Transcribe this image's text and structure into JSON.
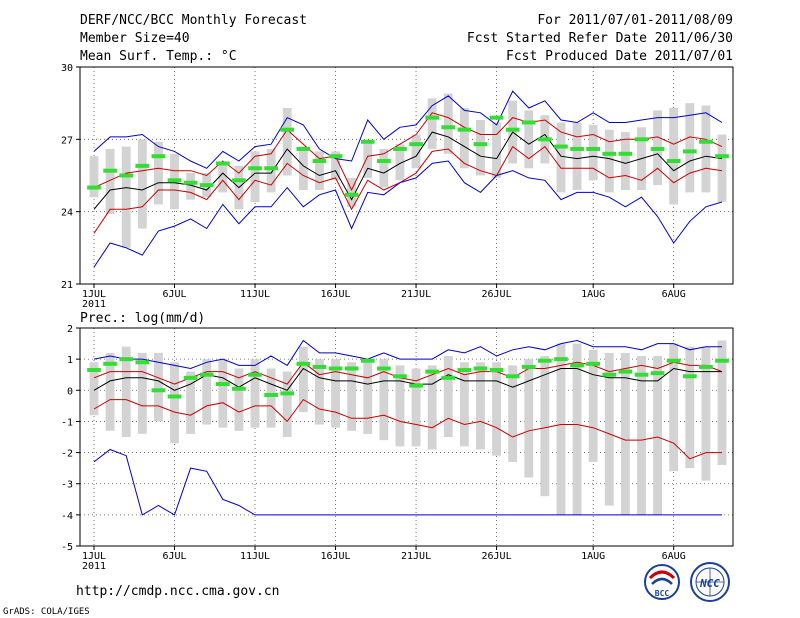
{
  "header": {
    "title": "DERF/NCC/BCC Monthly Forecast",
    "member_size": "Member Size=40",
    "variable": "Mean Surf. Temp.: °C",
    "period": "For 2011/07/01-2011/08/09",
    "fcst_started": "Fcst Started Refer Date 2011/06/30",
    "fcst_produced": "Fcst Produced Date 2011/07/01"
  },
  "footer": {
    "url": "http://cmdp.ncc.cma.gov.cn",
    "credit": "GrADS: COLA/IGES",
    "logo_bcc_text": "BCC",
    "logo_ncc_text": "NCC"
  },
  "colors": {
    "max_min": "#0000cc",
    "spread": "#cc0000",
    "mean": "#000000",
    "box": "#d3d3d3",
    "marker": "#33dd33",
    "grid": "#555555"
  },
  "chart_data": [
    {
      "type": "line",
      "title": "Mean Surf. Temp.: °C",
      "x_tick_labels": [
        "1JUL",
        "6JUL",
        "11JUL",
        "16JUL",
        "21JUL",
        "26JUL",
        "1AUG",
        "6AUG"
      ],
      "x_tick_days": [
        1,
        6,
        11,
        16,
        21,
        26,
        32,
        37
      ],
      "x_year_label": "2011",
      "days": 40,
      "ylim": [
        21,
        30
      ],
      "y_ticks": [
        21,
        24,
        27,
        30
      ],
      "series": [
        {
          "name": "max",
          "color": "#0000cc",
          "values": [
            26.5,
            27.1,
            27.1,
            27.2,
            26.7,
            26.5,
            26.1,
            25.8,
            26.5,
            26.1,
            26.7,
            26.8,
            27.9,
            27.6,
            26.6,
            26.2,
            26.1,
            27.8,
            27.0,
            27.5,
            27.6,
            28.4,
            28.8,
            28.2,
            28.1,
            27.6,
            29.0,
            28.3,
            28.6,
            27.8,
            27.7,
            28.1,
            27.7,
            27.7,
            27.8,
            27.9,
            27.9,
            28.0,
            28.1,
            27.7
          ]
        },
        {
          "name": "upper",
          "color": "#cc0000",
          "values": [
            25.0,
            25.3,
            25.6,
            25.7,
            25.8,
            25.7,
            25.7,
            25.5,
            26.1,
            25.6,
            26.3,
            26.4,
            27.4,
            26.8,
            26.2,
            26.3,
            24.9,
            26.3,
            26.4,
            26.8,
            27.2,
            28.1,
            27.9,
            27.5,
            27.2,
            27.2,
            27.9,
            27.7,
            27.8,
            27.3,
            27.1,
            27.2,
            26.9,
            27.0,
            27.0,
            27.1,
            26.8,
            27.1,
            27.0,
            26.7
          ]
        },
        {
          "name": "mean",
          "color": "#000000",
          "values": [
            24.1,
            24.9,
            25.0,
            24.9,
            25.2,
            25.2,
            25.1,
            24.9,
            25.6,
            25.0,
            25.6,
            25.6,
            26.6,
            25.9,
            25.5,
            25.7,
            24.5,
            25.8,
            25.6,
            26.0,
            26.3,
            27.3,
            27.1,
            26.7,
            26.3,
            26.2,
            27.3,
            26.8,
            27.2,
            26.3,
            26.2,
            26.3,
            26.2,
            26.0,
            26.2,
            26.4,
            25.7,
            26.1,
            26.3,
            26.2
          ]
        },
        {
          "name": "lower",
          "color": "#cc0000",
          "values": [
            23.1,
            24.1,
            24.1,
            24.2,
            24.9,
            24.9,
            24.8,
            24.5,
            25.3,
            24.5,
            25.3,
            25.1,
            26.0,
            25.5,
            25.2,
            25.4,
            24.1,
            25.3,
            24.9,
            25.2,
            25.6,
            26.5,
            26.6,
            26.0,
            25.7,
            25.5,
            26.7,
            26.2,
            26.7,
            25.8,
            25.8,
            25.8,
            25.4,
            25.5,
            25.3,
            25.8,
            25.2,
            25.6,
            25.8,
            25.7
          ]
        },
        {
          "name": "min",
          "color": "#0000cc",
          "values": [
            21.7,
            22.7,
            22.5,
            22.2,
            23.2,
            23.4,
            23.7,
            23.3,
            24.3,
            23.5,
            24.2,
            24.2,
            25.0,
            24.2,
            24.7,
            24.9,
            23.3,
            24.8,
            24.7,
            25.2,
            25.4,
            26.0,
            26.1,
            25.2,
            24.8,
            25.5,
            25.7,
            25.4,
            25.3,
            24.5,
            24.8,
            24.8,
            24.6,
            24.2,
            24.6,
            23.8,
            22.7,
            23.6,
            24.2,
            24.4
          ]
        }
      ],
      "boxes": {
        "top": [
          26.3,
          26.6,
          26.7,
          27.0,
          26.9,
          26.4,
          25.6,
          25.6,
          26.0,
          25.9,
          26.5,
          26.6,
          28.3,
          26.7,
          26.5,
          26.5,
          25.4,
          26.9,
          26.6,
          26.8,
          27.2,
          28.7,
          28.9,
          28.3,
          27.8,
          27.7,
          28.6,
          28.2,
          28.0,
          27.7,
          27.7,
          27.6,
          27.4,
          27.3,
          27.5,
          28.2,
          28.3,
          28.5,
          28.4,
          27.2
        ],
        "bottom": [
          24.6,
          23.9,
          22.5,
          23.3,
          24.3,
          24.1,
          24.5,
          24.6,
          24.8,
          24.1,
          24.4,
          24.8,
          25.5,
          24.9,
          24.9,
          25.3,
          24.2,
          25.4,
          25.0,
          25.3,
          25.8,
          26.6,
          26.4,
          25.8,
          25.5,
          25.4,
          26.0,
          25.8,
          26.0,
          24.8,
          24.9,
          25.3,
          24.8,
          24.9,
          24.9,
          25.1,
          24.3,
          24.8,
          24.8,
          24.4
        ]
      },
      "markers": [
        25.0,
        25.7,
        25.5,
        25.9,
        26.3,
        25.3,
        25.2,
        25.1,
        26.0,
        25.3,
        25.8,
        25.8,
        27.4,
        26.6,
        26.1,
        26.3,
        24.7,
        26.9,
        26.1,
        26.6,
        26.8,
        27.9,
        27.5,
        27.4,
        26.8,
        27.9,
        27.4,
        27.7,
        27.0,
        26.7,
        26.6,
        26.6,
        26.4,
        26.4,
        27.0,
        26.6,
        26.1,
        26.5,
        26.9,
        26.3
      ]
    },
    {
      "type": "line",
      "title": "Prec.: log(mm/d)",
      "x_tick_labels": [
        "1JUL",
        "6JUL",
        "11JUL",
        "16JUL",
        "21JUL",
        "26JUL",
        "1AUG",
        "6AUG"
      ],
      "x_tick_days": [
        1,
        6,
        11,
        16,
        21,
        26,
        32,
        37
      ],
      "x_year_label": "2011",
      "days": 40,
      "ylim": [
        -5,
        2
      ],
      "y_ticks": [
        -5,
        -4,
        -3,
        -2,
        -1,
        0,
        1,
        2
      ],
      "series": [
        {
          "name": "max",
          "color": "#0000cc",
          "values": [
            1.0,
            1.1,
            1.0,
            1.0,
            0.9,
            0.8,
            0.7,
            0.9,
            1.0,
            0.8,
            0.8,
            1.1,
            0.8,
            1.6,
            1.2,
            1.2,
            1.1,
            1.0,
            1.2,
            1.0,
            1.0,
            1.0,
            1.3,
            1.2,
            1.4,
            1.1,
            1.3,
            1.4,
            1.3,
            1.5,
            1.6,
            1.4,
            1.4,
            1.4,
            1.3,
            1.5,
            1.5,
            1.3,
            1.4,
            1.4
          ]
        },
        {
          "name": "upper",
          "color": "#cc0000",
          "values": [
            0.4,
            0.6,
            0.6,
            0.6,
            0.4,
            0.2,
            0.4,
            0.6,
            0.6,
            0.4,
            0.6,
            0.4,
            0.2,
            0.9,
            0.5,
            0.6,
            0.5,
            0.4,
            0.6,
            0.4,
            0.3,
            0.5,
            0.7,
            0.5,
            0.6,
            0.6,
            0.4,
            0.7,
            0.7,
            0.8,
            0.9,
            0.8,
            0.6,
            0.7,
            0.8,
            0.7,
            0.9,
            0.8,
            0.8,
            0.6
          ]
        },
        {
          "name": "mean",
          "color": "#000000",
          "values": [
            0.0,
            0.3,
            0.4,
            0.4,
            0.3,
            0.0,
            0.2,
            0.5,
            0.4,
            0.1,
            0.4,
            0.2,
            0.0,
            0.7,
            0.4,
            0.3,
            0.3,
            0.2,
            0.3,
            0.3,
            0.2,
            0.2,
            0.5,
            0.3,
            0.3,
            0.3,
            0.1,
            0.3,
            0.5,
            0.7,
            0.7,
            0.5,
            0.4,
            0.4,
            0.3,
            0.3,
            0.7,
            0.6,
            0.6,
            0.6
          ]
        },
        {
          "name": "lower",
          "color": "#cc0000",
          "values": [
            -0.6,
            -0.3,
            -0.3,
            -0.5,
            -0.5,
            -0.7,
            -0.8,
            -0.5,
            -0.4,
            -0.7,
            -0.5,
            -0.5,
            -1.0,
            -0.3,
            -0.6,
            -0.7,
            -0.9,
            -0.9,
            -0.8,
            -1.0,
            -1.1,
            -1.2,
            -0.9,
            -1.1,
            -1.0,
            -1.2,
            -1.5,
            -1.3,
            -1.2,
            -1.1,
            -1.1,
            -1.2,
            -1.4,
            -1.6,
            -1.6,
            -1.5,
            -1.7,
            -2.2,
            -2.0,
            -2.0
          ]
        },
        {
          "name": "min",
          "color": "#0000cc",
          "values": [
            -2.3,
            -1.9,
            -2.1,
            -4.0,
            -3.7,
            -4.0,
            -2.5,
            -2.6,
            -3.5,
            -3.7,
            -4.0,
            -4.0,
            -4.0,
            -4.0,
            -4.0,
            -4.0,
            -4.0,
            -4.0,
            -4.0,
            -4.0,
            -4.0,
            -4.0,
            -4.0,
            -4.0,
            -4.0,
            -4.0,
            -4.0,
            -4.0,
            -4.0,
            -4.0,
            -4.0,
            -4.0,
            -4.0,
            -4.0,
            -4.0,
            -4.0,
            -4.0,
            -4.0,
            -4.0,
            -4.0
          ]
        }
      ],
      "boxes": {
        "top": [
          0.9,
          1.2,
          1.4,
          1.2,
          1.2,
          0.9,
          0.6,
          1.0,
          1.0,
          0.7,
          1.0,
          0.7,
          0.6,
          1.4,
          1.0,
          1.0,
          0.9,
          0.9,
          1.0,
          0.8,
          0.7,
          0.8,
          1.1,
          0.9,
          0.9,
          0.9,
          0.8,
          1.0,
          1.1,
          1.5,
          1.5,
          1.3,
          1.2,
          1.2,
          1.1,
          1.1,
          1.5,
          1.4,
          1.4,
          1.6
        ],
        "bottom": [
          -0.8,
          -1.3,
          -1.5,
          -1.4,
          -1.0,
          -1.7,
          -1.4,
          -1.1,
          -1.2,
          -1.3,
          -1.2,
          -1.2,
          -1.5,
          -0.7,
          -1.1,
          -1.2,
          -1.3,
          -1.4,
          -1.6,
          -1.8,
          -1.8,
          -1.9,
          -1.5,
          -1.8,
          -1.9,
          -2.1,
          -2.3,
          -2.8,
          -3.4,
          -4.0,
          -4.0,
          -2.3,
          -3.7,
          -4.0,
          -4.0,
          -4.0,
          -2.6,
          -2.5,
          -2.9,
          -2.4
        ]
      },
      "markers": [
        0.65,
        0.85,
        1.0,
        0.9,
        0.0,
        -0.2,
        0.4,
        0.5,
        0.2,
        0.05,
        0.5,
        -0.15,
        -0.1,
        0.85,
        0.75,
        0.7,
        0.7,
        0.95,
        0.7,
        0.45,
        0.15,
        0.6,
        0.4,
        0.65,
        0.7,
        0.65,
        0.45,
        0.75,
        0.95,
        1.0,
        0.8,
        0.85,
        0.5,
        0.6,
        0.5,
        0.55,
        0.95,
        0.45,
        0.75,
        0.95
      ]
    }
  ]
}
